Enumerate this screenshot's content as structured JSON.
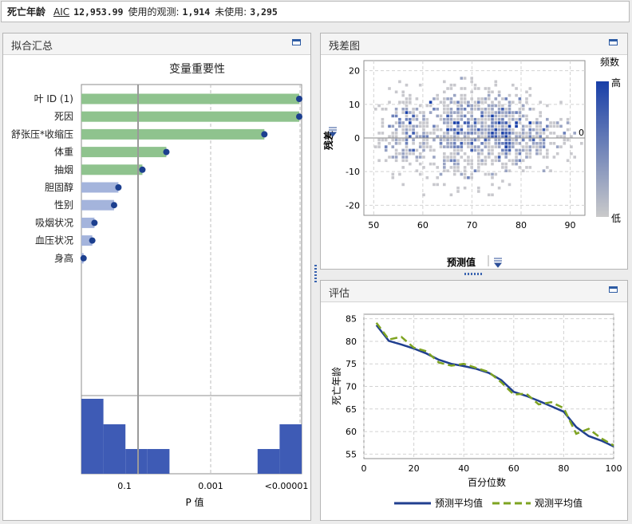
{
  "header": {
    "title": "死亡年龄",
    "aic_label": "AIC",
    "aic_value": "12,953.99",
    "used_label": "使用的观测:",
    "used_value": "1,914",
    "unused_label": "未使用:",
    "unused_value": "3,295"
  },
  "fit_summary": {
    "panel_title": "拟合汇总",
    "chart_title": "变量重要性",
    "xlabel": "P 值",
    "tick_labels": [
      "0.1",
      "0.001",
      "<0.00001"
    ],
    "variables": [
      {
        "name": "叶 ID (1)",
        "importance": 1.0,
        "color": "#8fc38e"
      },
      {
        "name": "死因",
        "importance": 1.0,
        "color": "#8fc38e"
      },
      {
        "name": "舒张压*收缩压",
        "importance": 0.84,
        "color": "#8fc38e"
      },
      {
        "name": "体重",
        "importance": 0.39,
        "color": "#8fc38e"
      },
      {
        "name": "抽烟",
        "importance": 0.28,
        "color": "#8fc38e"
      },
      {
        "name": "胆固醇",
        "importance": 0.17,
        "color": "#a4b4dc"
      },
      {
        "name": "性别",
        "importance": 0.15,
        "color": "#a4b4dc"
      },
      {
        "name": "吸烟状况",
        "importance": 0.06,
        "color": "#a4b4dc"
      },
      {
        "name": "血压状况",
        "importance": 0.05,
        "color": "#a4b4dc"
      },
      {
        "name": "身高",
        "importance": 0.01,
        "color": "#a4b4dc"
      }
    ],
    "histogram_heights": [
      1.0,
      0.66,
      0.33,
      0.33,
      0.0,
      0.0,
      0.0,
      0.0,
      0.33,
      0.66
    ]
  },
  "residual": {
    "panel_title": "残差图",
    "xlabel": "预测值",
    "ylabel": "残差",
    "legend_title": "频数",
    "legend_high": "高",
    "legend_low": "低",
    "zero_label": "0",
    "x_ticks": [
      "50",
      "60",
      "70",
      "80",
      "90"
    ],
    "y_ticks": [
      "20",
      "10",
      "0",
      "-10",
      "-20"
    ],
    "xlim": [
      48,
      93
    ],
    "ylim": [
      -23,
      23
    ]
  },
  "assessment": {
    "panel_title": "评估",
    "xlabel": "百分位数",
    "ylabel": "死亡年龄",
    "x_ticks": [
      "0",
      "20",
      "40",
      "60",
      "80",
      "100"
    ],
    "y_ticks": [
      "85",
      "80",
      "75",
      "70",
      "65",
      "60",
      "55"
    ],
    "legend_predicted": "预测平均值",
    "legend_observed": "观测平均值"
  },
  "chart_data": [
    {
      "type": "bar",
      "title": "变量重要性",
      "xlabel": "P 值",
      "categories": [
        "叶 ID (1)",
        "死因",
        "舒张压*收缩压",
        "体重",
        "抽烟",
        "胆固醇",
        "性别",
        "吸烟状况",
        "血压状况",
        "身高"
      ],
      "values": [
        1.0,
        1.0,
        0.84,
        0.39,
        0.28,
        0.17,
        0.15,
        0.06,
        0.05,
        0.01
      ]
    },
    {
      "type": "heatmap",
      "title": "残差图",
      "xlabel": "预测值",
      "ylabel": "残差",
      "xlim": [
        48,
        93
      ],
      "ylim": [
        -23,
        23
      ],
      "clusters": [
        {
          "x": 57,
          "y": 2,
          "sx": 3,
          "sy": 6,
          "n": 260
        },
        {
          "x": 67,
          "y": 1,
          "sx": 3,
          "sy": 7,
          "n": 360
        },
        {
          "x": 76,
          "y": 2,
          "sx": 3.5,
          "sy": 6,
          "n": 520
        },
        {
          "x": 85,
          "y": 0,
          "sx": 3,
          "sy": 4,
          "n": 120
        }
      ]
    },
    {
      "type": "line",
      "title": "评估",
      "xlabel": "百分位数",
      "ylabel": "死亡年龄",
      "xlim": [
        0,
        100
      ],
      "ylim": [
        54,
        86
      ],
      "x": [
        5,
        10,
        15,
        20,
        25,
        30,
        35,
        40,
        45,
        50,
        55,
        60,
        65,
        70,
        75,
        80,
        85,
        90,
        95,
        100
      ],
      "series": [
        {
          "name": "预测平均值",
          "color": "#203f8f",
          "values": [
            83.6,
            80.1,
            79.3,
            78.4,
            77.3,
            75.9,
            75.0,
            74.5,
            73.9,
            73.0,
            71.4,
            68.8,
            67.9,
            66.8,
            65.6,
            64.4,
            61.0,
            59.0,
            58.0,
            56.7
          ]
        },
        {
          "name": "观测平均值",
          "color": "#7ea321",
          "values": [
            84.1,
            80.4,
            81.0,
            78.6,
            77.8,
            75.3,
            74.6,
            75.0,
            74.1,
            73.2,
            70.9,
            68.2,
            68.4,
            66.0,
            66.5,
            65.2,
            59.5,
            60.6,
            58.5,
            56.9
          ]
        }
      ]
    }
  ]
}
